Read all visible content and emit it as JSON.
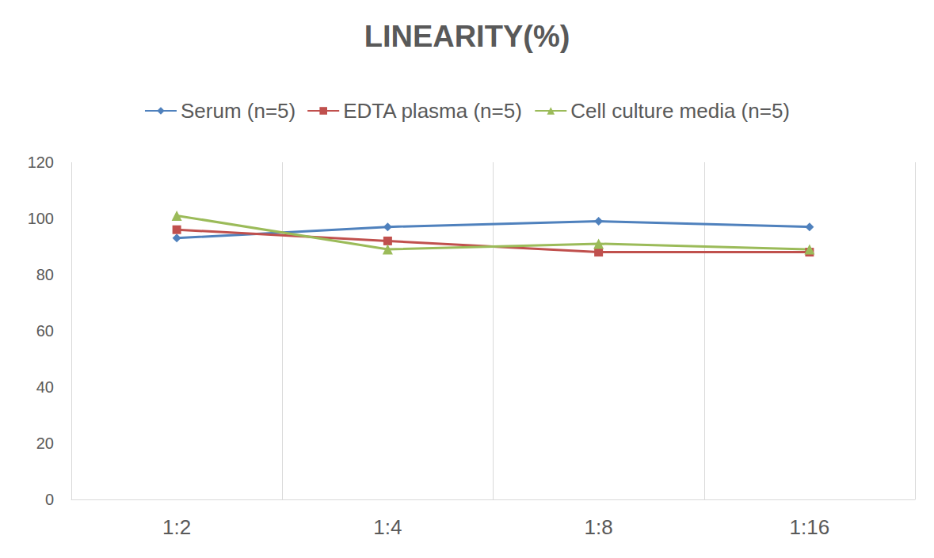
{
  "chart_data": {
    "type": "line",
    "title": "LINEARITY(%)",
    "categories": [
      "1:2",
      "1:4",
      "1:8",
      "1:16"
    ],
    "series": [
      {
        "name": "Serum (n=5)",
        "color": "#4f81bd",
        "marker": "diamond",
        "values": [
          93,
          97,
          99,
          97
        ]
      },
      {
        "name": "EDTA plasma (n=5)",
        "color": "#c0504d",
        "marker": "square",
        "values": [
          96,
          92,
          88,
          88
        ]
      },
      {
        "name": "Cell culture media (n=5)",
        "color": "#9bbb59",
        "marker": "triangle",
        "values": [
          101,
          89,
          91,
          89
        ]
      }
    ],
    "ylim": [
      0,
      120
    ],
    "yticks": [
      0,
      20,
      40,
      60,
      80,
      100,
      120
    ],
    "grid": "x",
    "legend": "top"
  }
}
